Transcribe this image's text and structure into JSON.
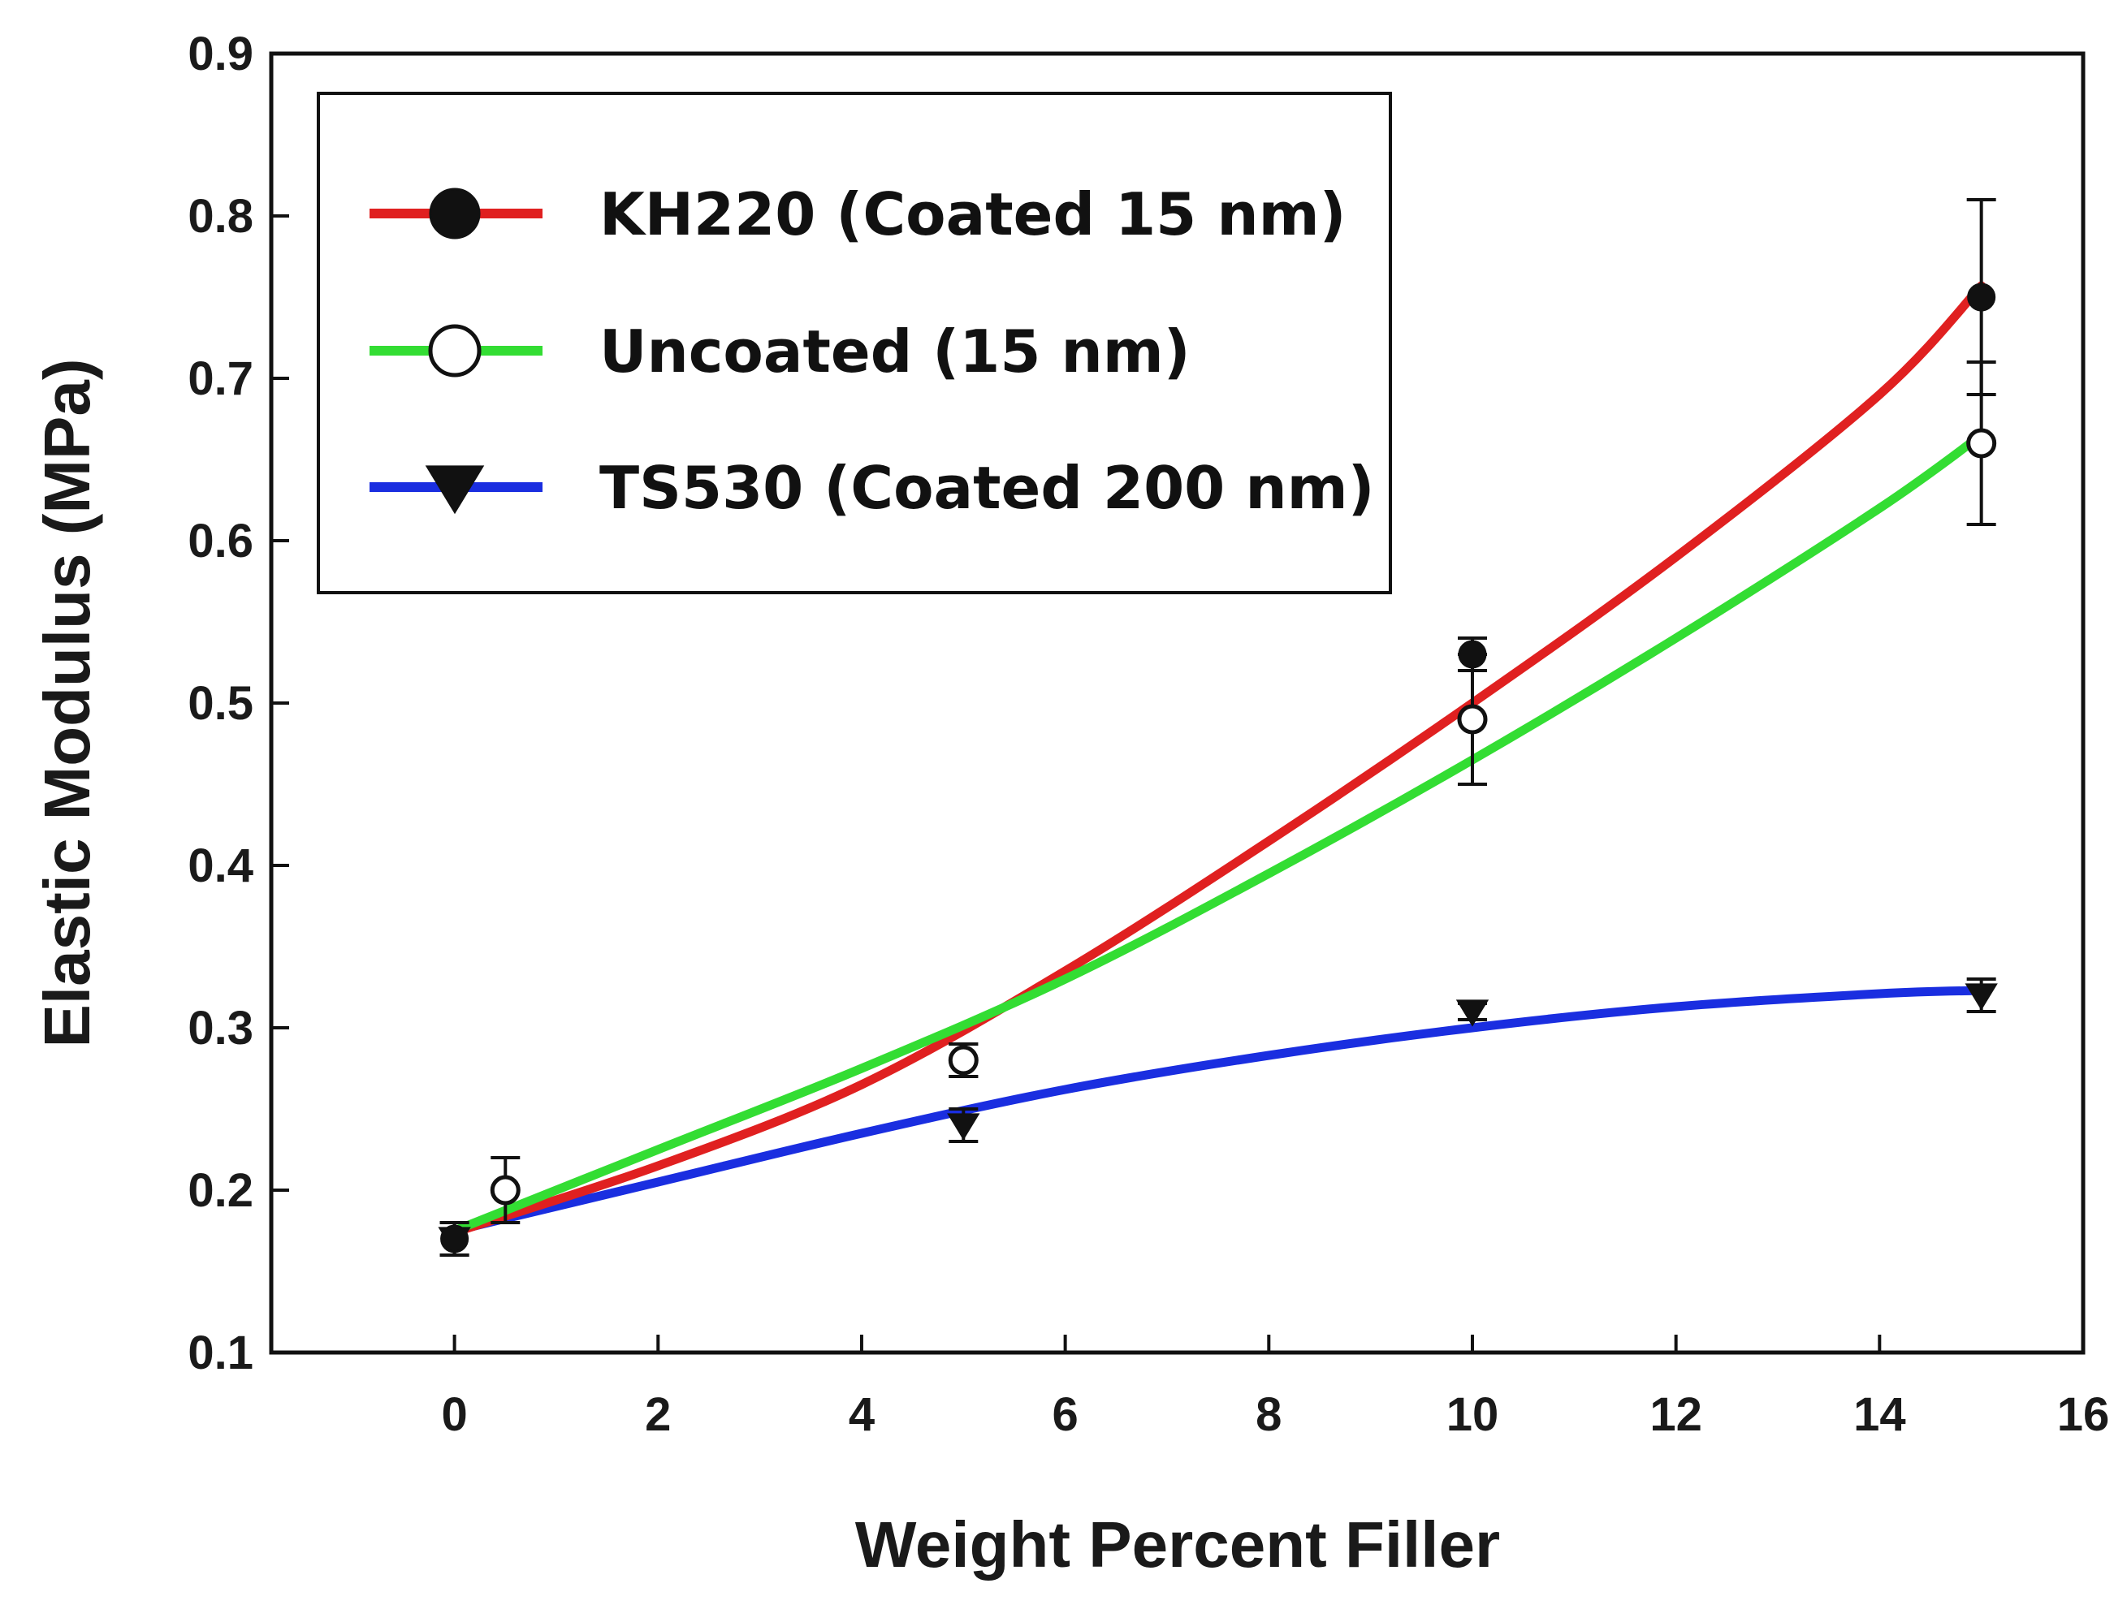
{
  "chart_data": {
    "type": "line",
    "title": "",
    "xlabel": "Weight Percent Filler",
    "ylabel": "Elastic Modulus (MPa)",
    "xlim": [
      -1.8,
      16
    ],
    "ylim": [
      0.1,
      0.9
    ],
    "xticks": [
      0,
      2,
      4,
      6,
      8,
      10,
      12,
      14,
      16
    ],
    "xtick_labels": [
      "0",
      "2",
      "4",
      "6",
      "8",
      "10",
      "12",
      "14",
      "16"
    ],
    "yticks": [
      0.1,
      0.2,
      0.3,
      0.4,
      0.5,
      0.6,
      0.7,
      0.8,
      0.9
    ],
    "ytick_labels": [
      "0.1",
      "0.2",
      "0.3",
      "0.4",
      "0.5",
      "0.6",
      "0.7",
      "0.8",
      "0.9"
    ],
    "grid": false,
    "legend_position": "top-left",
    "series": [
      {
        "name": "KH220 (Coated 15 nm)",
        "marker": "filled-circle",
        "line_color": "#e02020",
        "marker_color": "#111111",
        "points": [
          {
            "x": 0,
            "y": 0.17,
            "err": 0.01
          },
          {
            "x": 5,
            "y": 0.28,
            "err": 0.01
          },
          {
            "x": 10,
            "y": 0.53,
            "err": 0.01
          },
          {
            "x": 15,
            "y": 0.75,
            "err": 0.06
          }
        ],
        "fit": [
          [
            0,
            0.174
          ],
          [
            2,
            0.215
          ],
          [
            4,
            0.265
          ],
          [
            6,
            0.335
          ],
          [
            8,
            0.415
          ],
          [
            10,
            0.5
          ],
          [
            12,
            0.59
          ],
          [
            14,
            0.69
          ],
          [
            15,
            0.757
          ]
        ]
      },
      {
        "name": "Uncoated (15 nm)",
        "marker": "open-circle",
        "line_color": "#33dd33",
        "marker_color": "#111111",
        "points": [
          {
            "x": 0.5,
            "y": 0.2,
            "err": 0.02
          },
          {
            "x": 5,
            "y": 0.28,
            "err": 0.01
          },
          {
            "x": 10,
            "y": 0.49,
            "err": 0.04
          },
          {
            "x": 15,
            "y": 0.66,
            "err": 0.05
          }
        ],
        "fit": [
          [
            0,
            0.175
          ],
          [
            2,
            0.225
          ],
          [
            4,
            0.275
          ],
          [
            6,
            0.33
          ],
          [
            8,
            0.395
          ],
          [
            10,
            0.465
          ],
          [
            12,
            0.54
          ],
          [
            14,
            0.62
          ],
          [
            15,
            0.665
          ]
        ]
      },
      {
        "name": "TS530 (Coated 200 nm)",
        "marker": "filled-triangle-down",
        "line_color": "#1a2ee0",
        "marker_color": "#111111",
        "points": [
          {
            "x": 0,
            "y": 0.17,
            "err": 0.01
          },
          {
            "x": 5,
            "y": 0.24,
            "err": 0.01
          },
          {
            "x": 10,
            "y": 0.31,
            "err": 0.005
          },
          {
            "x": 15,
            "y": 0.32,
            "err": 0.01
          }
        ],
        "fit": [
          [
            0,
            0.175
          ],
          [
            2,
            0.205
          ],
          [
            4,
            0.235
          ],
          [
            6,
            0.262
          ],
          [
            8,
            0.283
          ],
          [
            10,
            0.3
          ],
          [
            12,
            0.313
          ],
          [
            14,
            0.321
          ],
          [
            15,
            0.323
          ]
        ]
      }
    ]
  }
}
